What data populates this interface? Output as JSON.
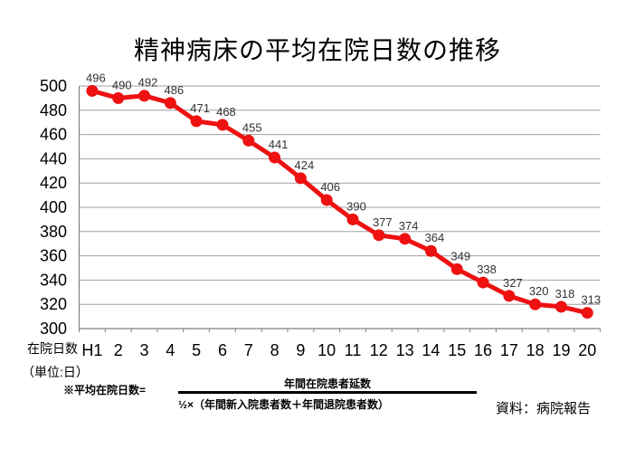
{
  "title": "精神病床の平均在院日数の推移",
  "chart_data": {
    "type": "line",
    "title": "精神病床の平均在院日数の推移",
    "categories": [
      "H1",
      "2",
      "3",
      "4",
      "5",
      "6",
      "7",
      "8",
      "9",
      "10",
      "11",
      "12",
      "13",
      "14",
      "15",
      "16",
      "17",
      "18",
      "19",
      "20"
    ],
    "values": [
      496,
      490,
      492,
      486,
      471,
      468,
      455,
      441,
      424,
      406,
      390,
      377,
      374,
      364,
      349,
      338,
      327,
      320,
      318,
      313
    ],
    "ylim": [
      300,
      500
    ],
    "ytick_step": 20,
    "grid": true,
    "legend": "none",
    "data_labels": true,
    "line_color": "#ee1111",
    "marker": "circle",
    "label_color": "#333333",
    "grid_color": "#a0a0a0",
    "axis_color": "#808080",
    "y_unit_label": {
      "line1": "在院日数",
      "line2": "（単位:日）"
    }
  },
  "footnote": {
    "label": "※平均在院日数=",
    "numerator": "年間在院患者延数",
    "denominator": "½×（年間新入院患者数＋年間退院患者数）"
  },
  "source": "資料：病院報告"
}
